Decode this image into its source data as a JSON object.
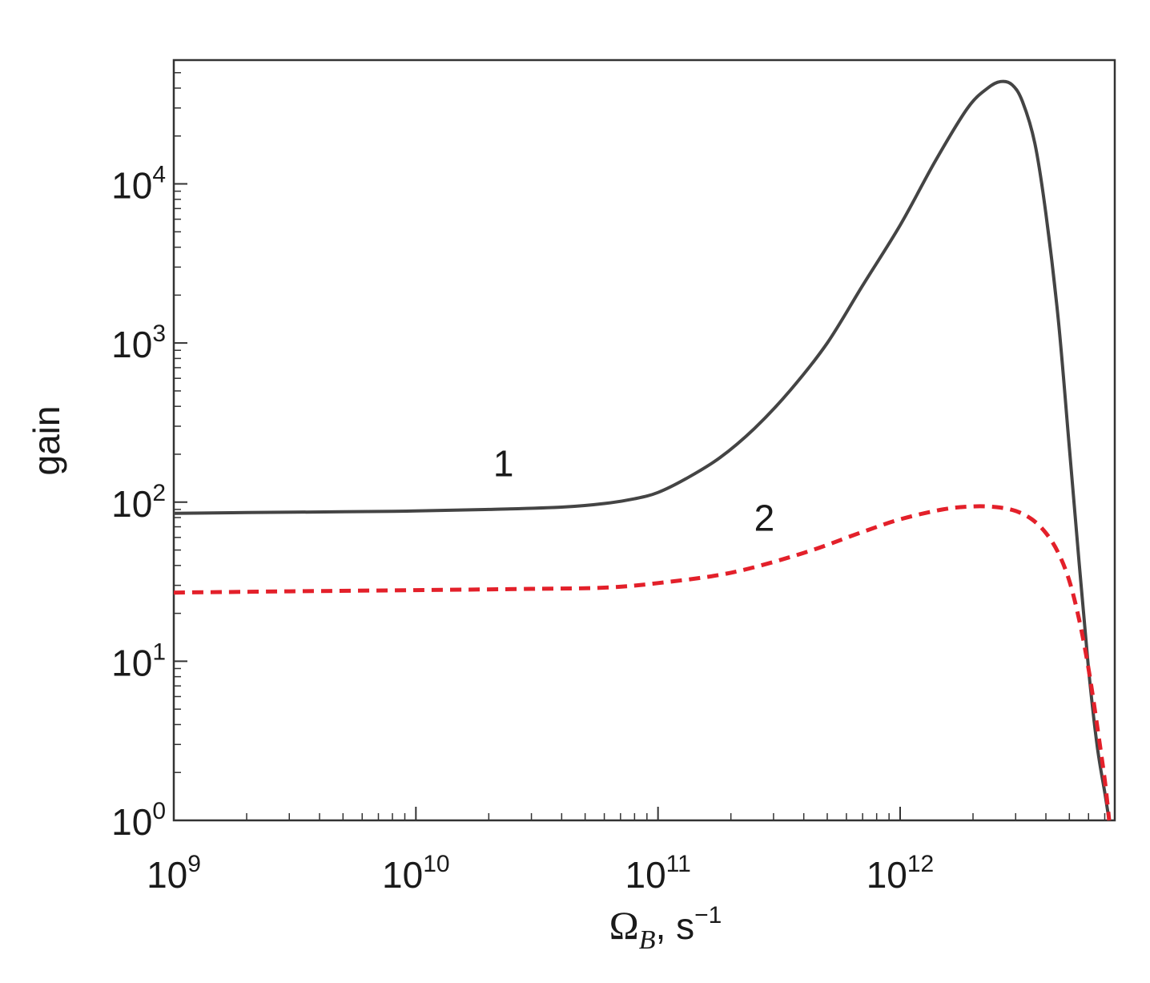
{
  "chart_data": {
    "type": "line",
    "title": "",
    "xlabel": {
      "symbol": "Ω",
      "subscript": "B",
      "rest": ", s",
      "superscript": "−1"
    },
    "ylabel": "gain",
    "xscale": "log",
    "yscale": "log",
    "xlim": [
      1000000000.0,
      7700000000000.0
    ],
    "ylim": [
      1,
      60000
    ],
    "grid": false,
    "legend": "none",
    "x_ticks": [
      {
        "value": 1000000000.0,
        "base": "10",
        "exp": "9"
      },
      {
        "value": 10000000000.0,
        "base": "10",
        "exp": "10"
      },
      {
        "value": 100000000000.0,
        "base": "10",
        "exp": "11"
      },
      {
        "value": 1000000000000.0,
        "base": "10",
        "exp": "12"
      }
    ],
    "y_ticks": [
      {
        "value": 1,
        "base": "10",
        "exp": "0"
      },
      {
        "value": 10,
        "base": "10",
        "exp": "1"
      },
      {
        "value": 100,
        "base": "10",
        "exp": "2"
      },
      {
        "value": 1000,
        "base": "10",
        "exp": "3"
      },
      {
        "value": 10000,
        "base": "10",
        "exp": "4"
      }
    ],
    "series": [
      {
        "label": "1",
        "label_position": {
          "x": 23000000000.0,
          "y": 145
        },
        "color": "#444444",
        "dash": "solid",
        "x": [
          1000000000.0,
          2000000000.0,
          5000000000.0,
          10000000000.0,
          20000000000.0,
          40000000000.0,
          60000000000.0,
          80000000000.0,
          100000000000.0,
          130000000000.0,
          180000000000.0,
          250000000000.0,
          350000000000.0,
          500000000000.0,
          700000000000.0,
          1000000000000.0,
          1400000000000.0,
          1900000000000.0,
          2300000000000.0,
          2600000000000.0,
          2900000000000.0,
          3200000000000.0,
          3600000000000.0,
          4000000000000.0,
          4500000000000.0,
          5000000000000.0,
          5500000000000.0,
          6000000000000.0,
          6500000000000.0,
          7000000000000.0,
          7300000000000.0
        ],
        "y": [
          85,
          86,
          87,
          88,
          90,
          93,
          98,
          105,
          115,
          140,
          190,
          290,
          500,
          1000,
          2300,
          5500,
          14000,
          30000,
          40000,
          44000,
          42000,
          33000,
          18000,
          6500,
          1400,
          220,
          40,
          9,
          3,
          1.5,
          1.0
        ]
      },
      {
        "label": "2",
        "label_position": {
          "x": 275000000000.0,
          "y": 66
        },
        "color": "#e3202a",
        "dash": "dashed",
        "x": [
          1000000000.0,
          3000000000.0,
          10000000000.0,
          30000000000.0,
          60000000000.0,
          100000000000.0,
          200000000000.0,
          400000000000.0,
          700000000000.0,
          1000000000000.0,
          1500000000000.0,
          2000000000000.0,
          2500000000000.0,
          3000000000000.0,
          3500000000000.0,
          4000000000000.0,
          4500000000000.0,
          5000000000000.0,
          5500000000000.0,
          6000000000000.0,
          6500000000000.0,
          7000000000000.0,
          7300000000000.0
        ],
        "y": [
          27,
          27.5,
          28,
          28.5,
          29,
          31,
          36,
          48,
          65,
          78,
          90,
          94,
          93,
          88,
          78,
          64,
          48,
          32,
          18,
          9,
          4,
          1.8,
          1.0
        ]
      }
    ]
  }
}
